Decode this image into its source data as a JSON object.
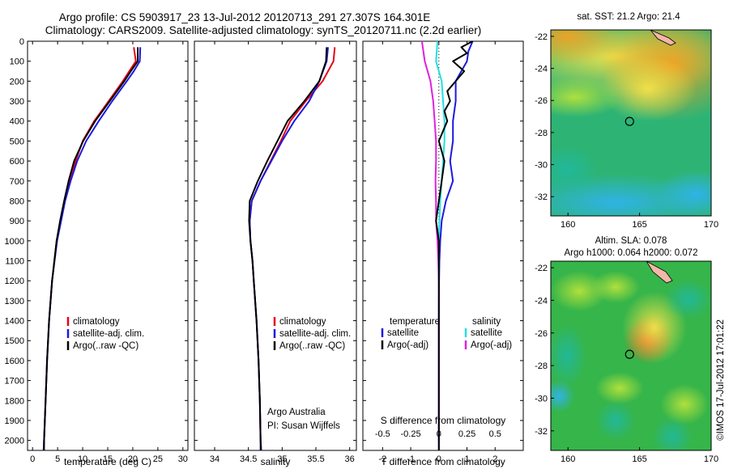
{
  "header": {
    "title_line1": "Argo profile: CS 5903917_23 13-Jul-2012 20120713_291 27.307S 164.301E",
    "title_line2": "Climatology: CARS2009. Satellite-adjusted climatology: synTS_20120711.nc (2.2d earlier)"
  },
  "colors": {
    "climatology": "#e8001c",
    "satellite": "#1a1adf",
    "argo": "#000000",
    "sat_salinity": "#22e0e0",
    "argo_salinity_diff": "#e020e0"
  },
  "chart_data": [
    {
      "id": "temperature",
      "type": "line",
      "xlabel": "temperature (deg C)",
      "xlim": [
        -1,
        31
      ],
      "ylim": [
        2050,
        0
      ],
      "xticks": [
        "0",
        "5",
        "10",
        "15",
        "20",
        "25",
        "30"
      ],
      "xtick_values": [
        0,
        5,
        10,
        15,
        20,
        25,
        30
      ],
      "yticks": [
        "0",
        "100",
        "200",
        "300",
        "400",
        "500",
        "600",
        "700",
        "800",
        "900",
        "1000",
        "1100",
        "1200",
        "1300",
        "1400",
        "1500",
        "1600",
        "1700",
        "1800",
        "1900",
        "2000"
      ],
      "ytick_values": [
        0,
        100,
        200,
        300,
        400,
        500,
        600,
        700,
        800,
        900,
        1000,
        1100,
        1200,
        1300,
        1400,
        1500,
        1600,
        1700,
        1800,
        1900,
        2000
      ],
      "legend": [
        "climatology",
        "satellite-adj. clim.",
        "Argo(..raw -QC)"
      ],
      "series": [
        {
          "name": "climatology",
          "color_key": "climatology",
          "depth": [
            30,
            100,
            150,
            200,
            300,
            400,
            500,
            600,
            700,
            800,
            900,
            1000,
            1200,
            1400,
            1600,
            1800,
            2000,
            2070
          ],
          "values": [
            20.2,
            20.6,
            19.3,
            18.0,
            15.2,
            12.3,
            10.0,
            8.6,
            7.4,
            6.4,
            5.6,
            4.8,
            3.9,
            3.3,
            2.9,
            2.6,
            2.3,
            2.2
          ]
        },
        {
          "name": "satellite-adj. clim.",
          "color_key": "satellite",
          "depth": [
            30,
            100,
            150,
            200,
            300,
            400,
            500,
            600,
            700,
            800,
            900,
            1000,
            1200,
            1400,
            1600,
            1800,
            2000,
            2070
          ],
          "values": [
            21.5,
            21.4,
            20.2,
            18.8,
            15.9,
            13.2,
            10.7,
            8.9,
            7.6,
            6.5,
            5.7,
            4.9,
            3.9,
            3.3,
            2.9,
            2.6,
            2.3,
            2.2
          ]
        },
        {
          "name": "Argo(..raw -QC)",
          "color_key": "argo",
          "depth": [
            30,
            100,
            150,
            200,
            300,
            400,
            500,
            600,
            700,
            800,
            900,
            1000,
            1200,
            1400,
            1600,
            1800,
            2000,
            2050
          ],
          "values": [
            21.0,
            21.0,
            19.6,
            18.3,
            15.4,
            12.5,
            10.1,
            8.3,
            7.2,
            6.3,
            5.5,
            4.8,
            3.9,
            3.3,
            2.9,
            2.6,
            2.3,
            2.3
          ]
        }
      ]
    },
    {
      "id": "salinity",
      "type": "line",
      "xlabel": "salinity",
      "xlim": [
        33.7,
        36.1
      ],
      "ylim": [
        2050,
        0
      ],
      "xticks": [
        "34",
        "34.5",
        "35",
        "35.5",
        "36"
      ],
      "xtick_values": [
        34,
        34.5,
        35,
        35.5,
        36
      ],
      "legend": [
        "climatology",
        "satellite-adj. clim.",
        "Argo(..raw -QC)"
      ],
      "annotation": [
        "Argo Australia",
        "PI: Susan Wijffels"
      ],
      "series": [
        {
          "name": "climatology",
          "color_key": "climatology",
          "depth": [
            30,
            100,
            200,
            300,
            400,
            500,
            600,
            700,
            800,
            900,
            1000,
            1100,
            1200,
            1400,
            1600,
            1800,
            2000,
            2070
          ],
          "values": [
            35.78,
            35.76,
            35.6,
            35.35,
            35.12,
            34.98,
            34.83,
            34.68,
            34.55,
            34.52,
            34.53,
            34.56,
            34.58,
            34.62,
            34.65,
            34.67,
            34.68,
            34.69
          ]
        },
        {
          "name": "satellite-adj. clim.",
          "color_key": "satellite",
          "depth": [
            30,
            100,
            200,
            300,
            400,
            500,
            600,
            700,
            800,
            900,
            1000,
            1100,
            1200,
            1400,
            1600,
            1800,
            2000,
            2070
          ],
          "values": [
            35.68,
            35.66,
            35.55,
            35.4,
            35.18,
            35.0,
            34.84,
            34.68,
            34.55,
            34.52,
            34.53,
            34.56,
            34.58,
            34.62,
            34.65,
            34.67,
            34.68,
            34.69
          ]
        },
        {
          "name": "Argo(..raw -QC)",
          "color_key": "argo",
          "depth": [
            30,
            100,
            200,
            300,
            400,
            500,
            600,
            700,
            800,
            900,
            1000,
            1100,
            1200,
            1400,
            1600,
            1800,
            2000,
            2050
          ],
          "values": [
            35.66,
            35.65,
            35.55,
            35.33,
            35.08,
            34.93,
            34.78,
            34.64,
            34.52,
            34.51,
            34.53,
            34.56,
            34.58,
            34.62,
            34.65,
            34.67,
            34.68,
            34.68
          ]
        }
      ]
    },
    {
      "id": "differences",
      "type": "line",
      "xlabel": "T difference from climatology",
      "xlabel_top": "S difference from climatology",
      "xlim": [
        -2.7,
        3.0
      ],
      "ylim": [
        2050,
        0
      ],
      "xticks": [
        "-2",
        "-1",
        "0",
        "1",
        "2"
      ],
      "xtick_values": [
        -2,
        -1,
        0,
        1,
        2
      ],
      "xticks_top": [
        "-0.5",
        "-0.25",
        "0",
        "0.25",
        "0.5"
      ],
      "xticks_top_values": [
        -2,
        -1,
        0,
        1,
        2
      ],
      "legend_titles": [
        "temperature",
        "salinity"
      ],
      "legend": [
        "satellite",
        "Argo(-adj)",
        "satellite",
        "Argo(-adj)"
      ],
      "series": [
        {
          "name": "satellite",
          "color_key": "satellite",
          "depth": [
            0,
            50,
            100,
            200,
            300,
            400,
            500,
            600,
            700,
            800,
            900,
            1000,
            1100,
            1200,
            1400,
            1600,
            2000,
            2070
          ],
          "values": [
            1.2,
            1.05,
            1.0,
            0.6,
            0.6,
            0.5,
            0.5,
            0.4,
            0.5,
            0.25,
            0.1,
            0.05,
            0.02,
            0.01,
            0.0,
            0.0,
            0.0,
            0.0
          ]
        },
        {
          "name": "Argo(-adj)",
          "color_key": "argo",
          "depth": [
            0,
            30,
            60,
            100,
            150,
            200,
            250,
            300,
            350,
            400,
            500,
            600,
            700,
            800,
            900,
            1000,
            1100,
            1200,
            1400,
            1600,
            2000,
            2070
          ],
          "values": [
            1.2,
            0.8,
            1.0,
            0.5,
            0.9,
            0.6,
            0.3,
            0.4,
            0.2,
            0.3,
            0.0,
            0.2,
            0.1,
            0.0,
            -0.1,
            0.0,
            0.0,
            0.0,
            0.0,
            0.0,
            0.0,
            0.0
          ]
        },
        {
          "name": "satellite",
          "color_key": "sat_salinity",
          "depth": [
            0,
            100,
            200,
            300,
            400,
            500,
            600,
            700,
            800,
            900,
            1000,
            1100,
            1200,
            1400,
            2000
          ],
          "values": [
            -0.05,
            -0.1,
            0.1,
            0.15,
            0.2,
            0.2,
            0.15,
            0.1,
            0.05,
            0.02,
            0.0,
            0.0,
            0.0,
            0.0,
            0.0
          ]
        },
        {
          "name": "Argo(-adj)",
          "color_key": "argo_salinity_diff",
          "depth": [
            0,
            100,
            200,
            300,
            400,
            500,
            600,
            700,
            800,
            900,
            1000,
            1100,
            1200,
            1400,
            2000
          ],
          "values": [
            -0.6,
            -0.5,
            -0.3,
            -0.2,
            -0.15,
            -0.1,
            -0.1,
            -0.12,
            -0.1,
            -0.1,
            -0.05,
            -0.02,
            0.0,
            0.0,
            0.0
          ]
        }
      ]
    },
    {
      "id": "sst-map",
      "type": "heatmap",
      "title": "sat. SST: 21.2  Argo: 21.4",
      "xlim": [
        158.8,
        170
      ],
      "ylim": [
        -33.2,
        -21.6
      ],
      "xticks": [
        "160",
        "165",
        "170"
      ],
      "xtick_values": [
        160,
        165,
        170
      ],
      "yticks": [
        "-22",
        "-24",
        "-26",
        "-28",
        "-30",
        "-32"
      ],
      "ytick_values": [
        -22,
        -24,
        -26,
        -28,
        -30,
        -32
      ],
      "marker": {
        "lon": 164.301,
        "lat": -27.307
      }
    },
    {
      "id": "sla-map",
      "type": "heatmap",
      "title_line1": "Altim. SLA: 0.078",
      "title_line2": "Argo h1000: 0.064  h2000: 0.072",
      "xlim": [
        158.8,
        170
      ],
      "ylim": [
        -33.2,
        -21.6
      ],
      "xticks": [
        "160",
        "165",
        "170"
      ],
      "xtick_values": [
        160,
        165,
        170
      ],
      "yticks": [
        "-22",
        "-24",
        "-26",
        "-28",
        "-30",
        "-32"
      ],
      "ytick_values": [
        -22,
        -24,
        -26,
        -28,
        -30,
        -32
      ],
      "marker": {
        "lon": 164.301,
        "lat": -27.307
      }
    }
  ],
  "side_stamp": "©IMOS 17-Jul-2012 17:01:22"
}
